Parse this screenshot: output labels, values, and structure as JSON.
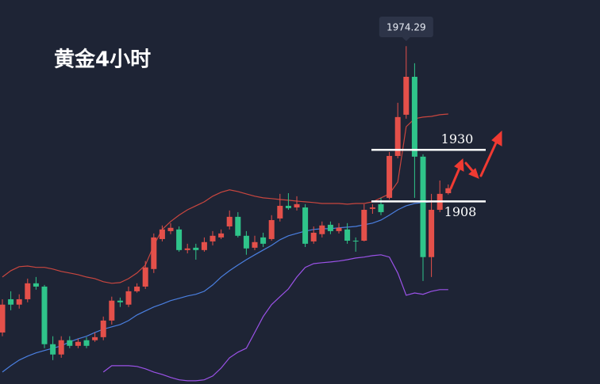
{
  "chart_data": {
    "type": "candlestick",
    "title": "黄金4小时",
    "ylim": [
      1830,
      1994
    ],
    "up_color": "#e4504a",
    "down_color": "#2fc48a",
    "open": [
      1852.0,
      1866.2,
      1863.9,
      1866.2,
      1873.0,
      1871.6,
      1847.0,
      1842.6,
      1848.7,
      1846.3,
      1848.7,
      1848.7,
      1850.0,
      1857.1,
      1865.6,
      1863.9,
      1869.6,
      1871.6,
      1879.1,
      1891.9,
      1895.3,
      1896.0,
      1887.2,
      1888.2,
      1887.2,
      1890.9,
      1892.6,
      1897.3,
      1901.4,
      1893.3,
      1888.2,
      1892.6,
      1891.9,
      1900.7,
      1906.1,
      1905.4,
      1905.4,
      1890.9,
      1894.0,
      1898.0,
      1895.3,
      1896.0,
      1891.2,
      1891.2,
      1904.8,
      1906.8,
      1909.5,
      1927.4,
      1945.0,
      1961.2,
      1927.1,
      1884.2,
      1904.4,
      1911.5
    ],
    "close": [
      1863.9,
      1863.9,
      1866.2,
      1873.0,
      1871.6,
      1847.0,
      1842.6,
      1848.7,
      1846.3,
      1848.0,
      1846.3,
      1850.0,
      1857.1,
      1865.6,
      1864.9,
      1869.6,
      1871.6,
      1879.8,
      1892.6,
      1896.0,
      1896.7,
      1887.2,
      1887.9,
      1887.2,
      1890.6,
      1893.3,
      1894.3,
      1901.4,
      1893.3,
      1887.9,
      1890.6,
      1889.9,
      1900.0,
      1906.1,
      1905.1,
      1906.8,
      1889.9,
      1894.6,
      1897.7,
      1895.3,
      1896.7,
      1891.2,
      1890.9,
      1904.4,
      1905.4,
      1903.4,
      1927.4,
      1944.0,
      1961.2,
      1927.1,
      1884.2,
      1904.4,
      1911.2,
      1913.6
    ],
    "high": [
      1866.2,
      1869.6,
      1868.3,
      1875.0,
      1875.7,
      1872.3,
      1850.4,
      1850.4,
      1850.4,
      1849.3,
      1850.0,
      1852.0,
      1858.8,
      1867.3,
      1866.9,
      1871.6,
      1873.0,
      1882.5,
      1894.3,
      1897.7,
      1898.7,
      1897.3,
      1889.9,
      1889.9,
      1892.6,
      1895.3,
      1896.0,
      1904.1,
      1903.4,
      1895.3,
      1893.3,
      1894.6,
      1902.1,
      1911.2,
      1911.5,
      1910.2,
      1906.8,
      1897.3,
      1899.4,
      1899.4,
      1898.7,
      1898.7,
      1892.6,
      1906.8,
      1906.8,
      1909.5,
      1929.1,
      1950.1,
      1974.29,
      1967.0,
      1928.1,
      1911.2,
      1916.9,
      1915.2
    ],
    "low": [
      1850.4,
      1861.5,
      1862.2,
      1864.9,
      1870.3,
      1845.3,
      1840.2,
      1841.2,
      1845.3,
      1845.3,
      1845.3,
      1848.0,
      1848.7,
      1855.4,
      1862.9,
      1862.9,
      1869.0,
      1870.6,
      1877.4,
      1890.9,
      1894.0,
      1886.5,
      1885.8,
      1883.1,
      1886.5,
      1889.2,
      1891.9,
      1896.0,
      1892.6,
      1885.2,
      1887.2,
      1888.5,
      1891.2,
      1899.4,
      1904.4,
      1904.1,
      1888.5,
      1889.9,
      1892.6,
      1894.0,
      1894.3,
      1889.9,
      1886.5,
      1890.9,
      1902.7,
      1902.1,
      1908.8,
      1926.4,
      1943.3,
      1909.5,
      1874.0,
      1875.7,
      1903.4,
      1910.9
    ],
    "bands": [
      {
        "color": "#c9463f",
        "values": [
          1875.7,
          1878.4,
          1880.1,
          1880.4,
          1879.8,
          1879.8,
          1879.1,
          1878.1,
          1877.4,
          1876.7,
          1875.7,
          1875.0,
          1873.7,
          1873.0,
          1873.3,
          1875.0,
          1877.4,
          1880.8,
          1889.2,
          1896.0,
          1899.4,
          1902.1,
          1904.4,
          1906.1,
          1907.8,
          1910.2,
          1911.9,
          1912.9,
          1912.2,
          1911.2,
          1910.2,
          1909.5,
          1909.2,
          1908.8,
          1908.5,
          1908.1,
          1907.8,
          1907.5,
          1907.1,
          1907.1,
          1907.1,
          1906.8,
          1907.1,
          1907.1,
          1907.8,
          1909.5,
          1911.2,
          1916.3,
          1939.9,
          1943.3,
          1944.0,
          1944.3,
          1945.0,
          1945.3
        ]
      },
      {
        "color": "#4a7fe0",
        "values": [
          1835.1,
          1837.8,
          1840.2,
          1841.9,
          1843.3,
          1844.3,
          1845.3,
          1846.3,
          1848.0,
          1849.3,
          1850.4,
          1852.0,
          1853.4,
          1854.4,
          1855.4,
          1857.1,
          1859.5,
          1861.2,
          1862.9,
          1864.2,
          1865.6,
          1866.6,
          1867.6,
          1868.3,
          1869.6,
          1872.3,
          1875.7,
          1878.4,
          1880.8,
          1883.1,
          1885.2,
          1887.2,
          1889.2,
          1891.6,
          1893.3,
          1894.3,
          1895.3,
          1896.0,
          1896.3,
          1896.3,
          1896.7,
          1897.0,
          1897.3,
          1898.0,
          1898.7,
          1900.0,
          1902.1,
          1904.4,
          1906.1,
          1907.1,
          1907.5,
          1907.8,
          1908.1,
          1908.1
        ]
      },
      {
        "color": "#9b52e8",
        "values": [
          null,
          null,
          null,
          null,
          null,
          null,
          null,
          null,
          null,
          null,
          null,
          null,
          1835.1,
          1837.8,
          1837.8,
          1837.8,
          1837.5,
          1836.5,
          1835.1,
          1834.1,
          1832.8,
          1831.8,
          1831.4,
          1831.4,
          1831.8,
          1833.4,
          1836.8,
          1841.2,
          1843.6,
          1845.3,
          1852.0,
          1858.8,
          1863.9,
          1867.3,
          1870.6,
          1875.7,
          1879.8,
          1881.4,
          1881.8,
          1882.1,
          1882.5,
          1883.1,
          1883.8,
          1884.2,
          1884.8,
          1885.2,
          1884.2,
          1877.4,
          1867.9,
          1868.9,
          1868.3,
          1869.6,
          1870.3,
          1870.3
        ]
      }
    ],
    "levels": [
      1930,
      1908
    ],
    "level_color": "#ffffff"
  }
}
